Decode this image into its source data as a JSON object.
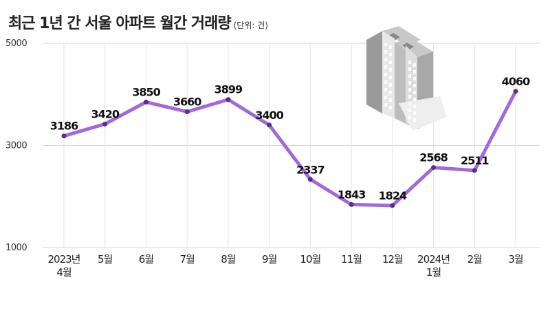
{
  "colors": {
    "line": "#a06ad8",
    "point": "#5a2c91",
    "grid": "#d6d6d6",
    "vgrid": "#e2e2e2"
  },
  "chart_data": {
    "type": "line",
    "title": "최근 1년 간 서울 아파트 월간 거래량",
    "unit_note": "(단위: 건)",
    "xlabel": "",
    "ylabel": "",
    "ylim": [
      1000,
      5000
    ],
    "yticks": [
      1000,
      3000,
      5000
    ],
    "grid": true,
    "categories": [
      [
        "2023년",
        "4월"
      ],
      [
        "5월"
      ],
      [
        "6월"
      ],
      [
        "7월"
      ],
      [
        "8월"
      ],
      [
        "9월"
      ],
      [
        "10월"
      ],
      [
        "11월"
      ],
      [
        "12월"
      ],
      [
        "2024년",
        "1월"
      ],
      [
        "2월"
      ],
      [
        "3월"
      ]
    ],
    "series": [
      {
        "values": [
          3186,
          3420,
          3850,
          3660,
          3899,
          3400,
          2337,
          1843,
          1824,
          2568,
          2511,
          4060
        ]
      }
    ],
    "decoration": "apartment-building-icon"
  }
}
